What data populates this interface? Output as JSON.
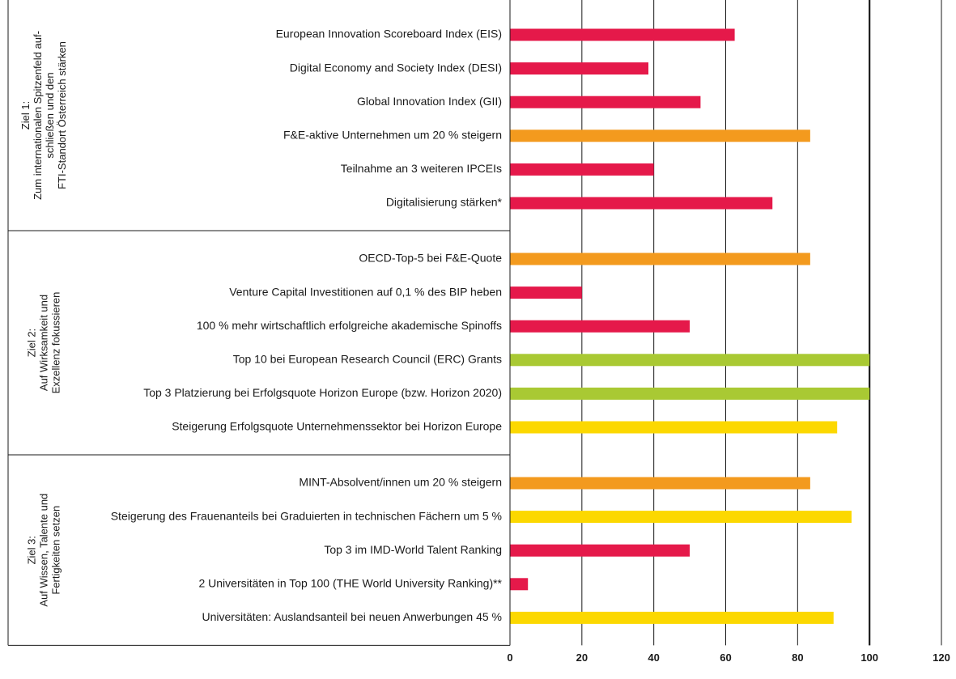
{
  "chart_data": {
    "type": "bar",
    "orientation": "horizontal",
    "xlim": [
      0,
      120
    ],
    "xticks": [
      0,
      20,
      40,
      60,
      80,
      100,
      120
    ],
    "target": 100,
    "grid": true,
    "groups": [
      {
        "label": [
          "Ziel 1:",
          "Zum internationalen Spitzenfeld auf-",
          "schließen und den",
          "FTI-Standort Österreich stärken"
        ],
        "categories": [
          "European Innovation Scoreboard Index (EIS)",
          "Digital Economy and Society Index (DESI)",
          "Global Innovation Index (GII)",
          "F&E-aktive Unternehmen um 20 % steigern",
          "Teilnahme an 3 weiteren IPCEIs",
          "Digitalisierung stärken*"
        ],
        "values": [
          62.5,
          38.5,
          53,
          83.5,
          40,
          73
        ],
        "colors": [
          "#e5194a",
          "#e5194a",
          "#e5194a",
          "#f39a1e",
          "#e5194a",
          "#e5194a"
        ]
      },
      {
        "label": [
          "Ziel 2:",
          "Auf Wirksamkeit und",
          "Exzellenz fokussieren"
        ],
        "categories": [
          "OECD-Top-5 bei F&E-Quote",
          "Venture Capital Investitionen auf 0,1 % des BIP heben",
          "100 % mehr wirtschaftlich erfolgreiche akademische Spinoffs",
          "Top 10 bei European Research Council (ERC) Grants",
          "Top 3 Platzierung bei Erfolgsquote Horizon Europe (bzw. Horizon 2020)",
          "Steigerung Erfolgsquote Unternehmenssektor bei Horizon Europe"
        ],
        "values": [
          83.5,
          20,
          50,
          100,
          100,
          91
        ],
        "colors": [
          "#f39a1e",
          "#e5194a",
          "#e5194a",
          "#a9c933",
          "#a9c933",
          "#fcd800"
        ]
      },
      {
        "label": [
          "Ziel 3:",
          "Auf Wissen, Talente und",
          "Fertigkeiten setzen"
        ],
        "categories": [
          "MINT-Absolvent/innen um 20 % steigern",
          "Steigerung des Frauenanteils bei Graduierten in technischen Fächern um 5 %",
          "Top 3 im IMD-World Talent Ranking",
          "2 Universitäten in Top 100 (THE World University Ranking)**",
          "Universitäten: Auslandsanteil bei neuen Anwerbungen 45 %"
        ],
        "values": [
          83.5,
          95,
          50,
          5,
          90
        ],
        "colors": [
          "#f39a1e",
          "#fcd800",
          "#e5194a",
          "#e5194a",
          "#fcd800"
        ]
      }
    ]
  }
}
